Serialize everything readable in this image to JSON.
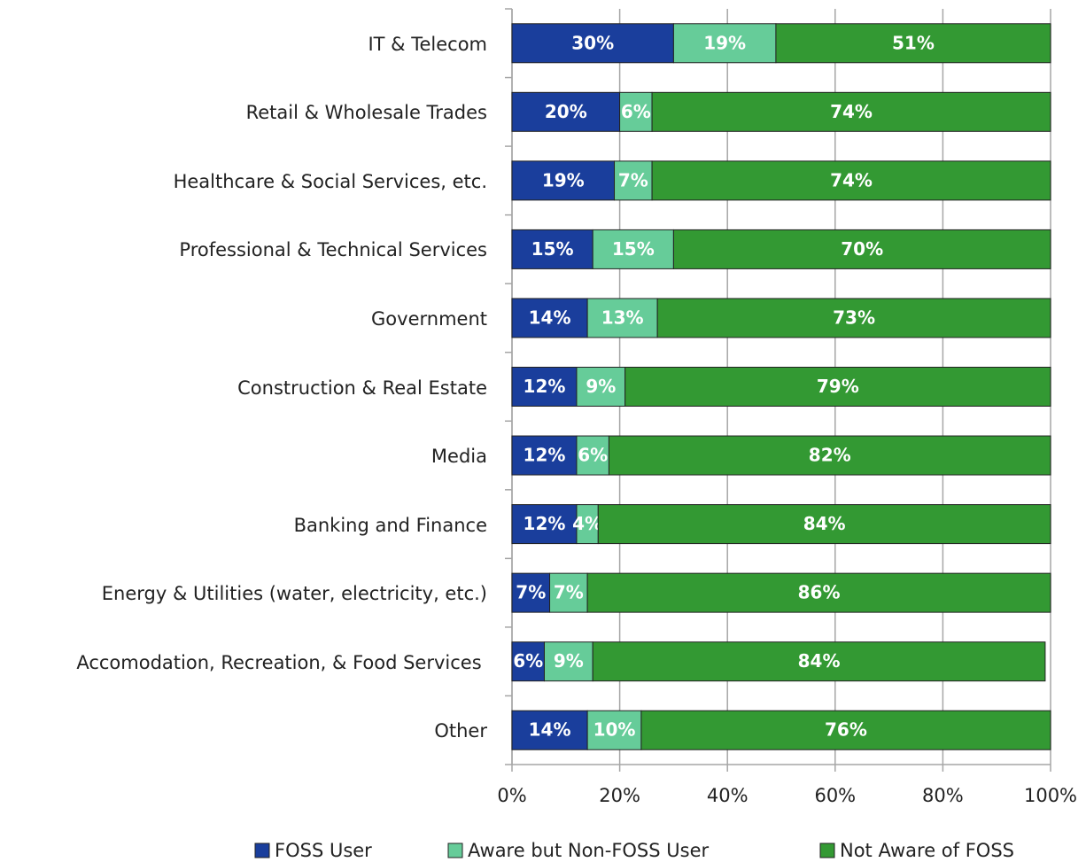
{
  "chart_data": {
    "type": "stacked-bar-horizontal",
    "categories": [
      "IT & Telecom",
      "Retail & Wholesale Trades",
      "Healthcare & Social Services, etc.",
      "Professional & Technical Services",
      "Government",
      "Construction & Real Estate",
      "Media",
      "Banking and Finance",
      "Energy & Utilities  (water, electricity, etc.)",
      "Accomodation, Recreation, & Food Services",
      "Other"
    ],
    "series": [
      {
        "name": "FOSS User",
        "color": "#1a3e9c",
        "values": [
          30,
          20,
          19,
          15,
          14,
          12,
          12,
          12,
          7,
          6,
          14
        ],
        "value_labels": [
          "30%",
          "20%",
          "19%",
          "15%",
          "14%",
          "12%",
          "12%",
          "12%",
          "7%",
          "6%",
          "14%"
        ]
      },
      {
        "name": "Aware but Non-FOSS User",
        "color": "#66cc99",
        "values": [
          19,
          6,
          7,
          15,
          13,
          9,
          6,
          4,
          7,
          9,
          10
        ],
        "value_labels": [
          "19%",
          "6%",
          "7%",
          "15%",
          "13%",
          "9%",
          "6%",
          "4%",
          "7%",
          "9%",
          "10%"
        ]
      },
      {
        "name": "Not Aware of FOSS",
        "color": "#339933",
        "values": [
          51,
          74,
          74,
          70,
          73,
          79,
          82,
          84,
          86,
          84,
          76
        ],
        "value_labels": [
          "51%",
          "74%",
          "74%",
          "70%",
          "73%",
          "79%",
          "82%",
          "84%",
          "86%",
          "84%",
          "76%"
        ]
      }
    ],
    "xlim": [
      0,
      100
    ],
    "xticks": [
      {
        "value": 0,
        "label": "0%"
      },
      {
        "value": 20,
        "label": "20%"
      },
      {
        "value": 40,
        "label": "40%"
      },
      {
        "value": 60,
        "label": "60%"
      },
      {
        "value": 80,
        "label": "80%"
      },
      {
        "value": 100,
        "label": "100%"
      }
    ],
    "grid": true,
    "legend": "bottom"
  }
}
